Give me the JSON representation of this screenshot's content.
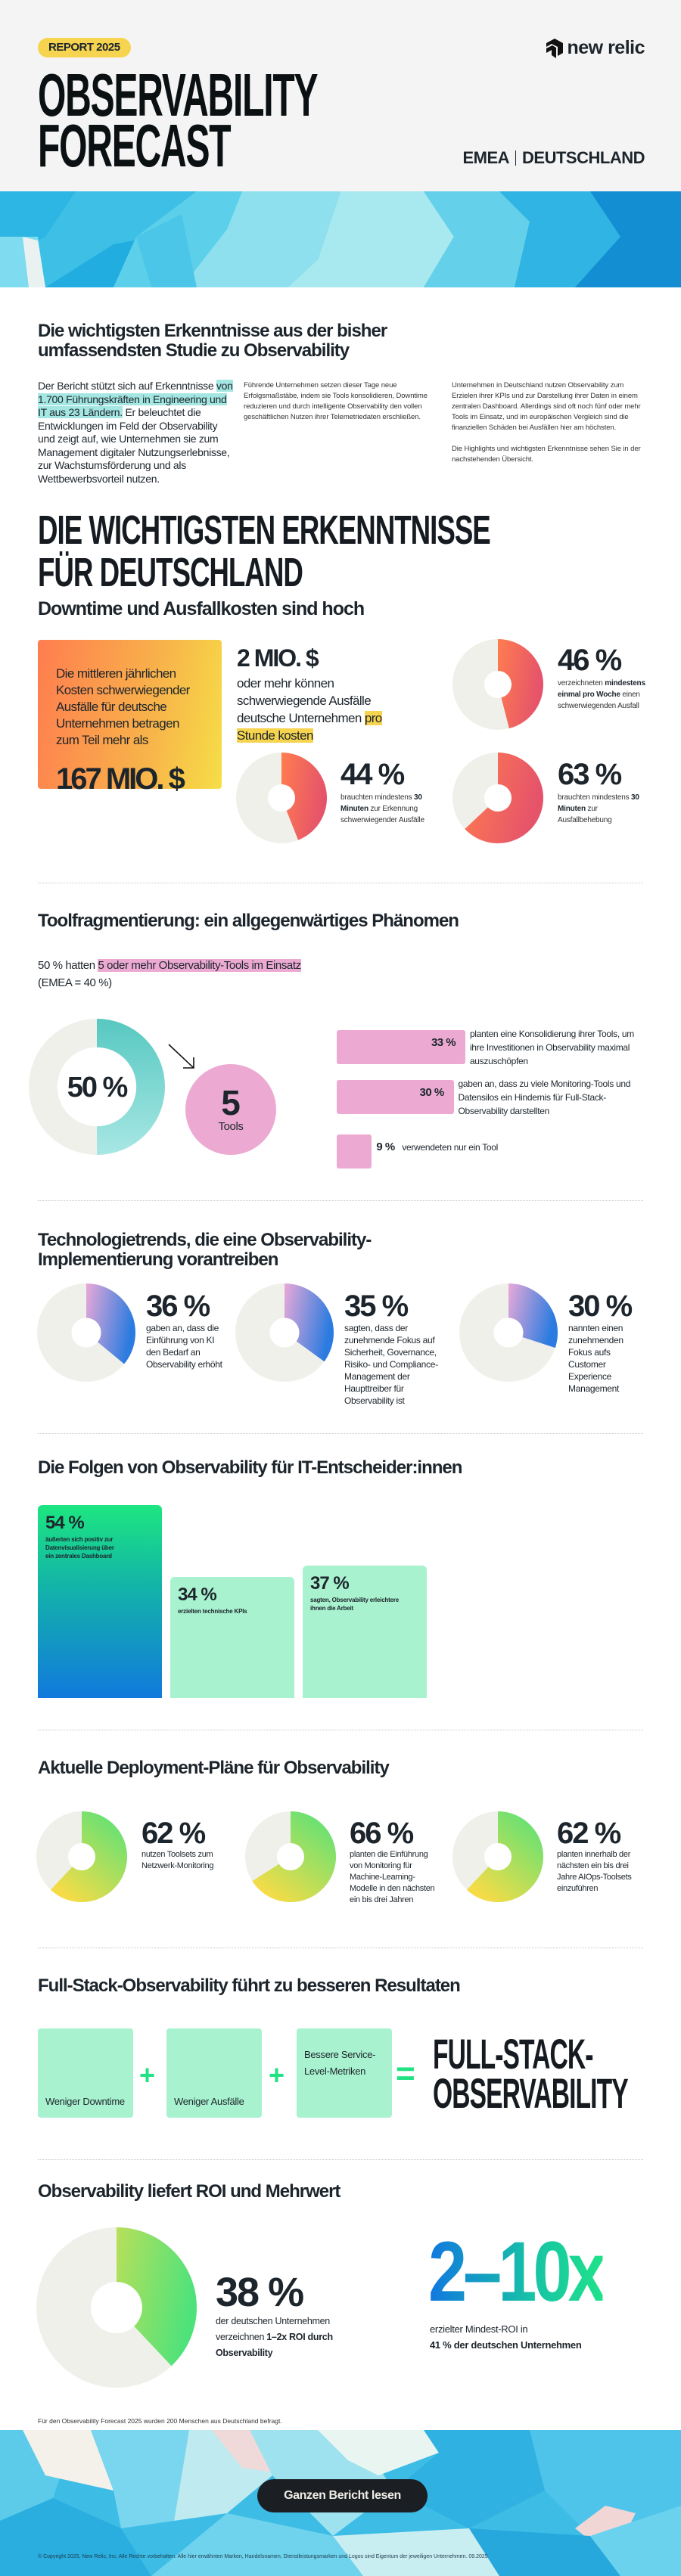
{
  "colors": {
    "text": "#1d252c",
    "track": "#f0f0eb",
    "badge_yellow": "#f6d44f",
    "orange": [
      "#ff7d4f",
      "#e5536b"
    ],
    "teal": [
      "#57c8c1",
      "#a8e7e4"
    ],
    "tech": [
      "#e9a9d8",
      "#2b7be0"
    ],
    "deploy": [
      "#4fe27b",
      "#f5dc47"
    ],
    "roi": [
      "#b8e05a",
      "#4fe27b"
    ],
    "pink": "#ecaad3",
    "mint": "#a8f2cf"
  },
  "header": {
    "badge": "REPORT 2025",
    "title_line1": "OBSERVABILITY",
    "title_line2": "FORECAST",
    "logo_text": "new relic",
    "region": "EMEA",
    "country": "DEUTSCHLAND"
  },
  "intro": {
    "heading_line1": "Die wichtigsten Erkenntnisse aus der bisher",
    "heading_line2": "umfassendsten Studie zu Observability",
    "col1_pre": "Der Bericht stützt sich auf Erkenntnisse ",
    "col1_highlight": "von 1.700 Führungskräften in Engineering und IT aus 23 Ländern.",
    "col1_post": " Er beleuchtet die Entwicklungen im Feld der Observability und zeigt auf, wie Unternehmen sie zum Management digitaler Nutzungserlebnisse, zur Wachstumsförderung und als Wettbewerbsvorteil nutzen.",
    "col2": "Führende Unternehmen setzen dieser Tage neue Erfolgsmaßstäbe, indem sie Tools konsolidieren, Downtime reduzieren und durch intelligente Observability den vollen geschäftlichen Nutzen ihrer Telemetriedaten erschließen.",
    "col3_p1": "Unternehmen in Deutschland nutzen Observability zum Erzielen ihrer KPIs und zur Darstellung ihrer Daten in einem zentralen Dashboard. Allerdings sind oft noch fünf oder mehr Tools im Einsatz, und im europäischen Vergleich sind die finanziellen Schäden bei Ausfällen hier am höchsten.",
    "col3_p2": "Die Highlights und wichtigsten Erkenntnisse sehen Sie in der nachstehenden Übersicht."
  },
  "key_findings": {
    "heading_line1": "DIE WICHTIGSTEN ERKENNTNISSE",
    "heading_line2": "FÜR DEUTSCHLAND"
  },
  "downtime": {
    "heading": "Downtime und Ausfallkosten sind hoch",
    "box_text": "Die mittleren jährlichen Kosten schwerwiegender Ausfälle für deutsche Unternehmen betragen zum Teil mehr als",
    "box_value": "167 MIO. $",
    "hourly_value": "2 MIO. $",
    "hourly_pre": "oder mehr können schwerwiegende Ausfälle deutsche Unternehmen ",
    "hourly_highlight": "pro Stunde kosten",
    "stats": [
      {
        "value": 46,
        "label": "46 %",
        "pre": "verzeichneten ",
        "bold": "mindestens einmal pro Woche",
        "post": " einen schwerwiegenden Ausfall"
      },
      {
        "value": 44,
        "label": "44 %",
        "pre": "brauchten mindestens ",
        "bold": "30 Minuten",
        "post": " zur Erkennung schwerwiegender Ausfälle"
      },
      {
        "value": 63,
        "label": "63 %",
        "pre": "brauchten mindestens ",
        "bold": "30 Minuten",
        "post": " zur Ausfallbehebung"
      }
    ]
  },
  "tools": {
    "heading": "Toolfragmentierung: ein allgegenwärtiges Phänomen",
    "intro_pre": "50 % hatten ",
    "intro_highlight": "5 oder mehr Observability-Tools im Einsatz",
    "intro_emea": "(EMEA = 40 %)",
    "donut_value": 50,
    "donut_label": "50 %",
    "circle_number": "5",
    "circle_label": "Tools",
    "bars": [
      {
        "value": 33,
        "label": "33 %",
        "text": "planten eine Konsolidierung ihrer Tools, um ihre Investitionen in Observability maximal auszuschöpfen"
      },
      {
        "value": 30,
        "label": "30 %",
        "text": "gaben an, dass zu viele Monitoring-Tools und Datensilos ein Hindernis für Full-Stack-Observability darstellten"
      },
      {
        "value": 9,
        "label": "9 %",
        "text": "verwendeten nur ein Tool"
      }
    ]
  },
  "tech": {
    "heading_line1": "Technologietrends, die eine Observability-",
    "heading_line2": "Implementierung vorantreiben",
    "stats": [
      {
        "value": 36,
        "label": "36 %",
        "text": "gaben an, dass die Einführung von KI den Bedarf an Observability erhöht"
      },
      {
        "value": 35,
        "label": "35 %",
        "text": "sagten, dass der zunehmende Fokus auf Sicherheit, Governance, Risiko- und Compliance-Management der Haupttreiber für Observability ist"
      },
      {
        "value": 30,
        "label": "30 %",
        "text": "nannten einen zunehmenden Fokus aufs Customer Experience Management"
      }
    ]
  },
  "results": {
    "heading": "Die Folgen von Observability für IT-Entscheider:innen",
    "bars": [
      {
        "value": 54,
        "label": "54 %",
        "text": "äußerten sich positiv zur Datenvisualisierung über ein zentrales Dashboard"
      },
      {
        "value": 34,
        "label": "34 %",
        "text": "erzielten technische KPIs"
      },
      {
        "value": 37,
        "label": "37 %",
        "text": "sagten, Observability erleichtere ihnen die Arbeit"
      }
    ]
  },
  "deployment": {
    "heading": "Aktuelle Deployment-Pläne für Observability",
    "stats": [
      {
        "value": 62,
        "label": "62 %",
        "text": "nutzen Toolsets zum Netzwerk-Monitoring"
      },
      {
        "value": 66,
        "label": "66 %",
        "text": "planten die Einführung von Monitoring für Machine-Learning-Modelle in den nächsten ein bis drei Jahren"
      },
      {
        "value": 62,
        "label": "62 %",
        "text": "planten innerhalb der nächsten ein bis drei Jahre AIOps-Toolsets einzuführen"
      }
    ]
  },
  "fullstack": {
    "heading": "Full-Stack-Observability führt zu besseren Resultaten",
    "items": [
      "Weniger Downtime",
      "Weniger Ausfälle",
      "Bessere Service-Level-Metriken"
    ],
    "plus": "+",
    "equals": "=",
    "result_line1": "FULL-STACK-",
    "result_line2": "OBSERVABILITY"
  },
  "roi": {
    "heading": "Observability liefert ROI und Mehrwert",
    "donut_value": 38,
    "donut_label": "38 %",
    "donut_pre": "der deutschen Unternehmen verzeichnen ",
    "donut_bold": "1–2x ROI durch Observability",
    "range": "2–10x",
    "range_pre": "erzielter Mindest-ROI in",
    "range_bold": "41 % der deutschen Unternehmen"
  },
  "footnote": "Für den Observability Forecast 2025 wurden 200 Menschen aus Deutschland befragt.",
  "footer": {
    "cta": "Ganzen Bericht lesen",
    "copyright": "© Copyright 2025, New Relic, Inc. Alle Rechte vorbehalten. Alle hier erwähnten Marken, Handelsnamen, Dienstleistungsmarken und Logos sind Eigentum der jeweiligen Unternehmen. 09.2025"
  }
}
